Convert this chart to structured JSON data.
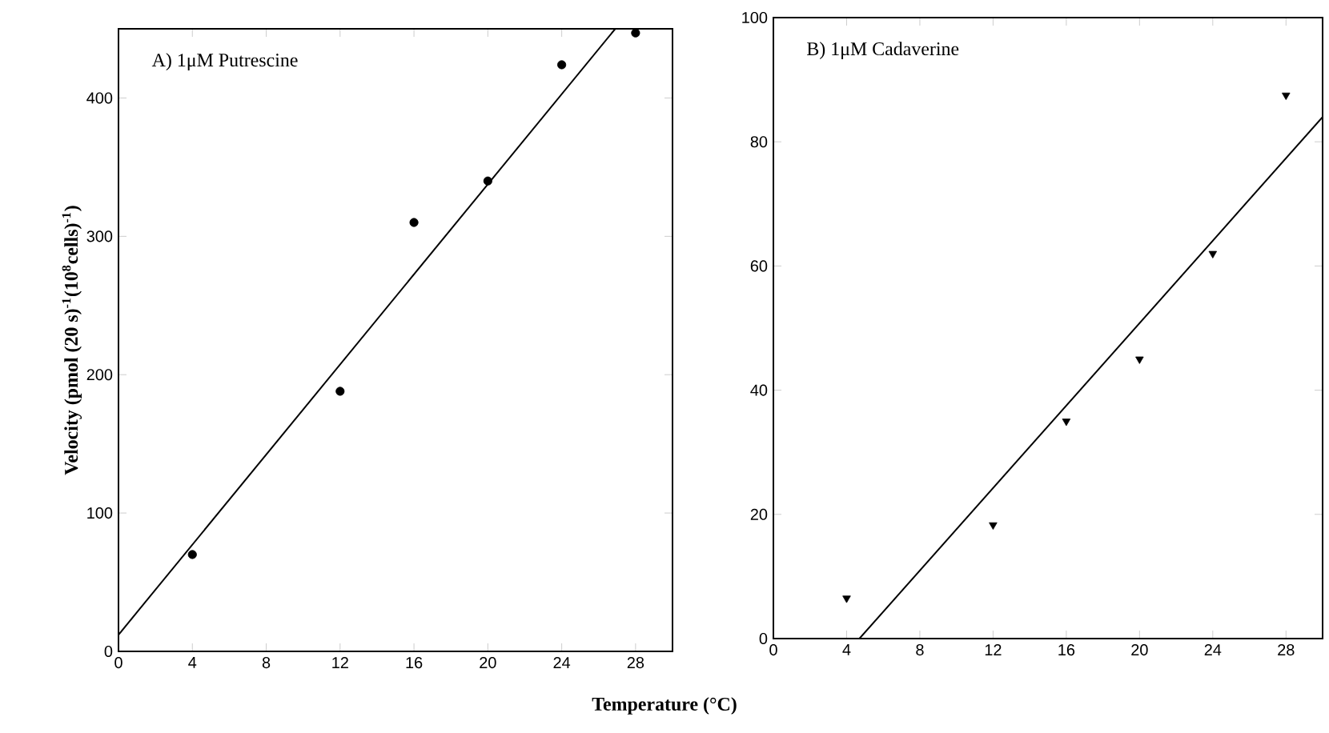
{
  "chart_data": [
    {
      "type": "scatter",
      "xlabel": "Temperature (°C)",
      "ylabel": "Velocity (pmol (20 s)$^{-1}$(10$^{8}$cells)$^{-1}$)",
      "annotations": [
        "A) 1μM Putrescine"
      ],
      "xlim": [
        0,
        30
      ],
      "xticks": [
        0,
        4,
        8,
        12,
        16,
        20,
        24,
        28
      ],
      "ylim": [
        0,
        450
      ],
      "yticks": [
        0,
        100,
        200,
        300,
        400
      ],
      "series": [
        {
          "marker": "circle",
          "color": "#000000",
          "x": [
            4,
            12,
            16,
            20,
            24,
            28
          ],
          "values": [
            70,
            188,
            310,
            340,
            424,
            447
          ]
        },
        {
          "type": "line",
          "marker": "none",
          "line_style": "solid",
          "color": "#000000",
          "x": [
            0,
            26.9
          ],
          "values": [
            12,
            450
          ]
        }
      ]
    },
    {
      "type": "scatter",
      "annotations": [
        "B) 1μM Cadaverine"
      ],
      "xlim": [
        0,
        30
      ],
      "xticks": [
        0,
        4,
        8,
        12,
        16,
        20,
        24,
        28
      ],
      "ylim": [
        0,
        100
      ],
      "yticks": [
        0,
        20,
        40,
        60,
        80,
        100
      ],
      "series": [
        {
          "marker": "triangle",
          "color": "#000000",
          "x": [
            4,
            12,
            16,
            20,
            24,
            28
          ],
          "values": [
            6.5,
            18.3,
            35,
            45,
            62,
            87.5
          ]
        },
        {
          "type": "line",
          "marker": "none",
          "line_style": "solid",
          "color": "#000000",
          "x": [
            4.7,
            30
          ],
          "values": [
            0,
            84
          ]
        }
      ]
    }
  ]
}
